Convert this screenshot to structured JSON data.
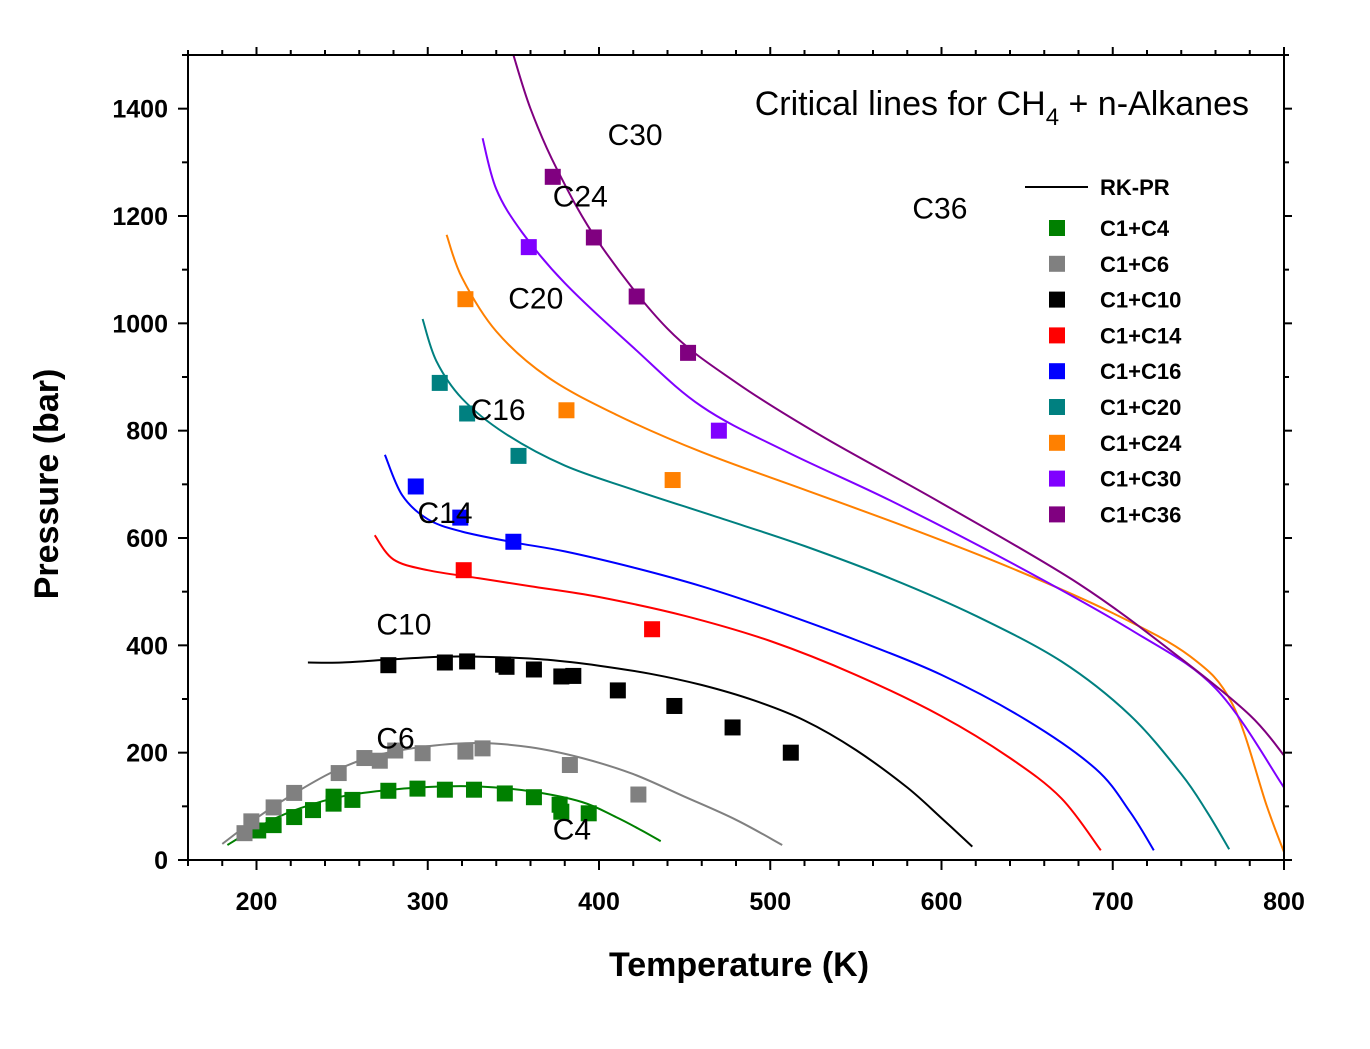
{
  "chart_data": {
    "type": "line",
    "title_parts": [
      "Critical lines for CH",
      "4",
      " + n-Alkanes"
    ],
    "xlabel": "Temperature (K)",
    "ylabel": "Pressure (bar)",
    "xlim": [
      160,
      800
    ],
    "ylim": [
      0,
      1500
    ],
    "xticks": [
      200,
      300,
      400,
      500,
      600,
      700,
      800
    ],
    "yticks": [
      0,
      200,
      400,
      600,
      800,
      1000,
      1200,
      1400
    ],
    "grid": false,
    "legend_position": "top-right",
    "legend_line_label": "RK-PR",
    "legend_line_color": "#000000",
    "series": [
      {
        "name": "C1+C4",
        "label": "C4",
        "color": "#008000",
        "label_at": [
          373,
          38
        ],
        "line": [
          [
            183,
            28
          ],
          [
            200,
            60
          ],
          [
            220,
            90
          ],
          [
            245,
            115
          ],
          [
            270,
            128
          ],
          [
            300,
            136
          ],
          [
            330,
            137
          ],
          [
            360,
            128
          ],
          [
            390,
            108
          ],
          [
            410,
            80
          ],
          [
            425,
            55
          ],
          [
            436,
            35
          ]
        ],
        "points": [
          [
            201,
            55
          ],
          [
            210,
            65
          ],
          [
            222,
            80
          ],
          [
            233,
            93
          ],
          [
            245,
            118
          ],
          [
            245,
            105
          ],
          [
            256,
            112
          ],
          [
            277,
            129
          ],
          [
            294,
            133
          ],
          [
            310,
            131
          ],
          [
            327,
            131
          ],
          [
            345,
            124
          ],
          [
            362,
            117
          ],
          [
            377,
            103
          ],
          [
            378,
            90
          ],
          [
            394,
            87
          ]
        ]
      },
      {
        "name": "C1+C6",
        "label": "C6",
        "color": "#808080",
        "label_at": [
          270,
          208
        ],
        "line": [
          [
            180,
            30
          ],
          [
            200,
            78
          ],
          [
            220,
            120
          ],
          [
            245,
            165
          ],
          [
            270,
            195
          ],
          [
            300,
            212
          ],
          [
            330,
            218
          ],
          [
            360,
            210
          ],
          [
            390,
            190
          ],
          [
            420,
            160
          ],
          [
            450,
            118
          ],
          [
            480,
            75
          ],
          [
            507,
            28
          ]
        ],
        "points": [
          [
            193,
            50
          ],
          [
            197,
            72
          ],
          [
            210,
            98
          ],
          [
            222,
            125
          ],
          [
            248,
            162
          ],
          [
            263,
            190
          ],
          [
            272,
            185
          ],
          [
            281,
            204
          ],
          [
            297,
            199
          ],
          [
            322,
            202
          ],
          [
            332,
            208
          ],
          [
            383,
            177
          ],
          [
            423,
            122
          ]
        ]
      },
      {
        "name": "C1+C10",
        "label": "C10",
        "color": "#000000",
        "label_at": [
          270,
          420
        ],
        "line": [
          [
            230,
            368
          ],
          [
            250,
            368
          ],
          [
            280,
            374
          ],
          [
            310,
            379
          ],
          [
            340,
            378
          ],
          [
            370,
            373
          ],
          [
            400,
            362
          ],
          [
            430,
            347
          ],
          [
            460,
            326
          ],
          [
            490,
            298
          ],
          [
            520,
            260
          ],
          [
            550,
            205
          ],
          [
            580,
            135
          ],
          [
            600,
            78
          ],
          [
            618,
            25
          ]
        ],
        "points": [
          [
            277,
            363
          ],
          [
            310,
            368
          ],
          [
            323,
            370
          ],
          [
            344,
            364
          ],
          [
            346,
            360
          ],
          [
            362,
            355
          ],
          [
            378,
            342
          ],
          [
            385,
            343
          ],
          [
            411,
            316
          ],
          [
            444,
            287
          ],
          [
            478,
            247
          ],
          [
            512,
            200
          ]
        ]
      },
      {
        "name": "C1+C14",
        "label": "C14",
        "color": "#ff0000",
        "label_at": [
          294,
          628
        ],
        "line": [
          [
            269,
            605
          ],
          [
            280,
            560
          ],
          [
            300,
            540
          ],
          [
            330,
            525
          ],
          [
            360,
            510
          ],
          [
            400,
            490
          ],
          [
            450,
            455
          ],
          [
            500,
            408
          ],
          [
            550,
            345
          ],
          [
            600,
            268
          ],
          [
            640,
            190
          ],
          [
            670,
            115
          ],
          [
            693,
            18
          ]
        ],
        "points": [
          [
            321,
            540
          ],
          [
            431,
            430
          ]
        ]
      },
      {
        "name": "C1+C16",
        "label": "C16",
        "color": "#0000ff",
        "label_at": [
          325,
          820
        ],
        "line": [
          [
            275,
            755
          ],
          [
            285,
            680
          ],
          [
            300,
            635
          ],
          [
            320,
            612
          ],
          [
            350,
            592
          ],
          [
            380,
            575
          ],
          [
            420,
            545
          ],
          [
            460,
            510
          ],
          [
            500,
            468
          ],
          [
            550,
            410
          ],
          [
            600,
            345
          ],
          [
            650,
            260
          ],
          [
            690,
            170
          ],
          [
            710,
            90
          ],
          [
            724,
            18
          ]
        ],
        "points": [
          [
            293,
            696
          ],
          [
            319,
            638
          ],
          [
            350,
            593
          ]
        ]
      },
      {
        "name": "C1+C20",
        "label": "C20",
        "color": "#008080",
        "label_at": [
          347,
          1028
        ],
        "line": [
          [
            297,
            1008
          ],
          [
            305,
            930
          ],
          [
            320,
            860
          ],
          [
            345,
            795
          ],
          [
            380,
            735
          ],
          [
            420,
            690
          ],
          [
            470,
            638
          ],
          [
            520,
            585
          ],
          [
            570,
            525
          ],
          [
            620,
            455
          ],
          [
            670,
            370
          ],
          [
            710,
            270
          ],
          [
            740,
            160
          ],
          [
            755,
            90
          ],
          [
            768,
            20
          ]
        ],
        "points": [
          [
            307,
            889
          ],
          [
            323,
            832
          ],
          [
            353,
            753
          ]
        ]
      },
      {
        "name": "C1+C24",
        "label": "C24",
        "color": "#ff8000",
        "label_at": [
          373,
          1218
        ],
        "line": [
          [
            311,
            1165
          ],
          [
            320,
            1085
          ],
          [
            340,
            985
          ],
          [
            370,
            900
          ],
          [
            410,
            830
          ],
          [
            460,
            760
          ],
          [
            520,
            690
          ],
          [
            580,
            620
          ],
          [
            640,
            545
          ],
          [
            700,
            460
          ],
          [
            745,
            380
          ],
          [
            770,
            290
          ],
          [
            790,
            100
          ],
          [
            800,
            15
          ]
        ],
        "points": [
          [
            322,
            1045
          ],
          [
            381,
            838
          ],
          [
            443,
            708
          ]
        ]
      },
      {
        "name": "C1+C30",
        "label": "C30",
        "color": "#8000ff",
        "label_at": [
          405,
          1332
        ],
        "line": [
          [
            332,
            1345
          ],
          [
            340,
            1250
          ],
          [
            355,
            1170
          ],
          [
            380,
            1075
          ],
          [
            420,
            955
          ],
          [
            460,
            845
          ],
          [
            510,
            760
          ],
          [
            570,
            670
          ],
          [
            640,
            555
          ],
          [
            710,
            430
          ],
          [
            760,
            320
          ],
          [
            800,
            135
          ]
        ],
        "points": [
          [
            359,
            1142
          ],
          [
            470,
            800
          ]
        ]
      },
      {
        "name": "C1+C36",
        "label": "C36",
        "color": "#800080",
        "label_at": [
          583,
          1195
        ],
        "line": [
          [
            350,
            1500
          ],
          [
            360,
            1400
          ],
          [
            375,
            1290
          ],
          [
            400,
            1150
          ],
          [
            440,
            990
          ],
          [
            480,
            890
          ],
          [
            530,
            790
          ],
          [
            600,
            665
          ],
          [
            680,
            515
          ],
          [
            740,
            375
          ],
          [
            780,
            270
          ],
          [
            800,
            195
          ]
        ],
        "points": [
          [
            373,
            1273
          ],
          [
            397,
            1160
          ],
          [
            422,
            1050
          ],
          [
            452,
            945
          ]
        ]
      }
    ]
  }
}
